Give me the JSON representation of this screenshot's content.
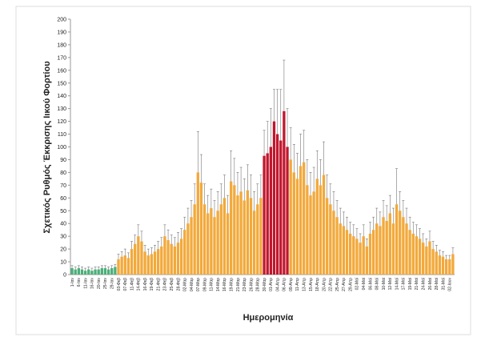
{
  "chart_data": {
    "type": "bar",
    "y_label": "Σχετικός Ρυθμός Έκκρισης Ιικού Φορτίου",
    "x_label": "Ημερομηνία",
    "categories": [
      "1-Ιαν",
      null,
      "6-Ιαν",
      null,
      "11-Ιαν",
      null,
      "16-Ιαν",
      null,
      "20-Ιαν",
      null,
      "25-Ιαν",
      null,
      "29-Ιαν",
      null,
      "03-Φεβ",
      null,
      "07-Φεβ",
      null,
      "11-Φεβ",
      null,
      "14-Φεβ",
      null,
      "16-Φεβ",
      null,
      "19-Φεβ",
      null,
      "21-Φεβ",
      null,
      "23-Φεβ",
      null,
      "25-Φεβ",
      null,
      "28-Φεβ",
      null,
      "02-Μαρ",
      null,
      "04-Μαρ",
      null,
      "07-Μαρ",
      null,
      "09-Μαρ",
      null,
      "11-Μαρ",
      null,
      "14-Μαρ",
      null,
      "16-Μαρ",
      null,
      "19-Μαρ",
      null,
      "21-Μαρ",
      null,
      "23-Μαρ",
      null,
      "26-Μαρ",
      null,
      "28-Μαρ",
      null,
      "30-Μαρ",
      null,
      "01-Απρ",
      null,
      "04-Απρ",
      null,
      "06-Απρ",
      null,
      "09-Απρ",
      null,
      "11-Απρ",
      null,
      "13-Απρ",
      null,
      "15-Απρ",
      null,
      "18-Απρ",
      null,
      "20-Απρ",
      null,
      "22-Απρ",
      null,
      "25-Απρ",
      null,
      "27-Απρ",
      null,
      "29-Απρ",
      null,
      "02-Μαϊ",
      null,
      "04-Μαϊ",
      null,
      "06-Μαϊ",
      null,
      "08-Μαϊ",
      null,
      "10-Μαϊ",
      null,
      "12-Μαϊ",
      null,
      "14-Μαϊ",
      null,
      "17-Μαϊ",
      null,
      "19-Μαϊ",
      null,
      "21-Μαϊ",
      null,
      "24-Μαϊ",
      null,
      "26-Μαϊ",
      null,
      "28-Μαϊ",
      null,
      "31-Μαϊ",
      null,
      "02-Ιουν",
      null
    ],
    "values": [
      5,
      4,
      5,
      4,
      3,
      4,
      3,
      4,
      4,
      5,
      5,
      4,
      5,
      6,
      12,
      14,
      15,
      13,
      20,
      24,
      30,
      26,
      18,
      15,
      16,
      18,
      20,
      22,
      30,
      27,
      24,
      22,
      25,
      28,
      35,
      40,
      45,
      55,
      80,
      72,
      55,
      48,
      52,
      45,
      50,
      55,
      60,
      48,
      73,
      70,
      62,
      65,
      58,
      66,
      60,
      50,
      55,
      60,
      93,
      95,
      100,
      120,
      110,
      105,
      128,
      100,
      90,
      80,
      75,
      85,
      88,
      70,
      62,
      65,
      75,
      70,
      78,
      60,
      55,
      50,
      45,
      40,
      38,
      35,
      32,
      30,
      28,
      25,
      30,
      22,
      32,
      35,
      40,
      38,
      45,
      42,
      48,
      40,
      55,
      50,
      45,
      40,
      35,
      32,
      30,
      28,
      25,
      22,
      26,
      20,
      18,
      15,
      14,
      12,
      12,
      16
    ],
    "errors": [
      2,
      2,
      2,
      2,
      2,
      2,
      2,
      2,
      2,
      2,
      2,
      2,
      2,
      2,
      4,
      4,
      5,
      4,
      6,
      7,
      9,
      8,
      5,
      5,
      5,
      5,
      6,
      7,
      9,
      8,
      7,
      7,
      8,
      8,
      10,
      12,
      13,
      16,
      32,
      22,
      16,
      14,
      15,
      13,
      15,
      16,
      18,
      14,
      24,
      21,
      18,
      19,
      17,
      20,
      18,
      15,
      16,
      18,
      20,
      25,
      30,
      25,
      35,
      40,
      40,
      30,
      25,
      22,
      20,
      25,
      25,
      20,
      18,
      19,
      22,
      20,
      26,
      18,
      16,
      15,
      13,
      12,
      11,
      10,
      9,
      9,
      8,
      7,
      9,
      6,
      9,
      10,
      12,
      11,
      13,
      12,
      14,
      12,
      28,
      15,
      13,
      12,
      10,
      9,
      9,
      8,
      7,
      6,
      8,
      6,
      5,
      4,
      4,
      3,
      3,
      5
    ],
    "colors": [
      "#4caf7a",
      "#4caf7a",
      "#4caf7a",
      "#4caf7a",
      "#4caf7a",
      "#4caf7a",
      "#4caf7a",
      "#4caf7a",
      "#4caf7a",
      "#4caf7a",
      "#4caf7a",
      "#4caf7a",
      "#4caf7a",
      "#4caf7a",
      "#f2a93b",
      "#f2a93b",
      "#f2a93b",
      "#f2a93b",
      "#f2a93b",
      "#f2a93b",
      "#f2a93b",
      "#f2a93b",
      "#f2a93b",
      "#f2a93b",
      "#f2a93b",
      "#f2a93b",
      "#f2a93b",
      "#f2a93b",
      "#f2a93b",
      "#f2a93b",
      "#f2a93b",
      "#f2a93b",
      "#f2a93b",
      "#f2a93b",
      "#f2a93b",
      "#f2a93b",
      "#f2a93b",
      "#f2a93b",
      "#f2a93b",
      "#f2a93b",
      "#f2a93b",
      "#f2a93b",
      "#f2a93b",
      "#f2a93b",
      "#f2a93b",
      "#f2a93b",
      "#f2a93b",
      "#f2a93b",
      "#f2a93b",
      "#f2a93b",
      "#f2a93b",
      "#f2a93b",
      "#f2a93b",
      "#f2a93b",
      "#f2a93b",
      "#f2a93b",
      "#f2a93b",
      "#f2a93b",
      "#c0172e",
      "#c0172e",
      "#c0172e",
      "#c0172e",
      "#c0172e",
      "#c0172e",
      "#c0172e",
      "#c0172e",
      "#f2a93b",
      "#f2a93b",
      "#f2a93b",
      "#f2a93b",
      "#f2a93b",
      "#f2a93b",
      "#f2a93b",
      "#f2a93b",
      "#f2a93b",
      "#f2a93b",
      "#f2a93b",
      "#f2a93b",
      "#f2a93b",
      "#f2a93b",
      "#f2a93b",
      "#f2a93b",
      "#f2a93b",
      "#f2a93b",
      "#f2a93b",
      "#f2a93b",
      "#f2a93b",
      "#f2a93b",
      "#f2a93b",
      "#f2a93b",
      "#f2a93b",
      "#f2a93b",
      "#f2a93b",
      "#f2a93b",
      "#f2a93b",
      "#f2a93b",
      "#f2a93b",
      "#f2a93b",
      "#f2a93b",
      "#f2a93b",
      "#f2a93b",
      "#f2a93b",
      "#f2a93b",
      "#f2a93b",
      "#f2a93b",
      "#f2a93b",
      "#f2a93b",
      "#f2a93b",
      "#f2a93b",
      "#f2a93b",
      "#f2a93b",
      "#f2a93b",
      "#f2a93b",
      "#f2a93b",
      "#f2a93b",
      "#f2a93b"
    ],
    "ylim": [
      0,
      200
    ],
    "yticks": [
      0,
      10,
      20,
      30,
      40,
      50,
      60,
      70,
      80,
      90,
      100,
      110,
      120,
      130,
      140,
      150,
      160,
      170,
      180,
      190,
      200
    ]
  }
}
